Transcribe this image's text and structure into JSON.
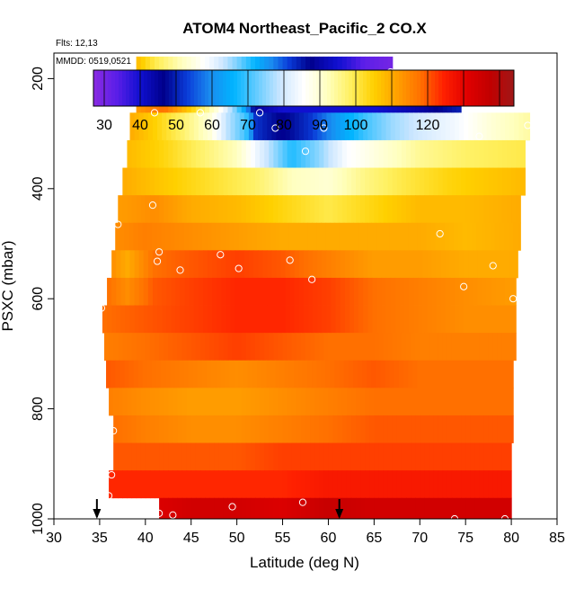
{
  "chart_data": {
    "type": "heatmap",
    "title": "ATOM4 Northeast_Pacific_2 CO.X",
    "annotations": [
      "Flts: 12,13",
      "MMDD: 0519,0521"
    ],
    "xlabel": "Latitude (deg N)",
    "ylabel": "PSXC (mbar)",
    "xlim": [
      30,
      85
    ],
    "ylim": [
      1000,
      0
    ],
    "y_inverted": true,
    "x_ticks": [
      "30",
      "35",
      "40",
      "45",
      "50",
      "55",
      "60",
      "65",
      "70",
      "75",
      "80",
      "85"
    ],
    "y_ticks": [
      "200",
      "400",
      "600",
      "800",
      "1000"
    ],
    "colorbar": {
      "range": [
        27,
        144
      ],
      "ticks": [
        "30",
        "40",
        "50",
        "60",
        "70",
        "80",
        "90",
        "100",
        "120"
      ],
      "placement": "top-inside",
      "colors": [
        "#8a2be2",
        "#5a1ee8",
        "#1010d0",
        "#00008c",
        "#0a3cd8",
        "#1a8cf0",
        "#00b4ff",
        "#66ccff",
        "#cce6ff",
        "#ffffff",
        "#ffffc0",
        "#fff060",
        "#ffd000",
        "#ffa000",
        "#ff7000",
        "#ff2000",
        "#e00000",
        "#c00000",
        "#a01818"
      ]
    },
    "arrows_at_latitude": [
      34.7,
      61.2
    ],
    "bands": [
      {
        "p_top": 160,
        "p_bot": 212,
        "x0": 39.0,
        "x1": 67.0,
        "values": [
          [
            39,
            108
          ],
          [
            41,
            100
          ],
          [
            44,
            92
          ],
          [
            47,
            84
          ],
          [
            50,
            74
          ],
          [
            53,
            62
          ],
          [
            56,
            52
          ],
          [
            59,
            44
          ],
          [
            62,
            38
          ],
          [
            64,
            33
          ],
          [
            67,
            30
          ]
        ]
      },
      {
        "p_top": 212,
        "p_bot": 262,
        "x0": 39.0,
        "x1": 74.5,
        "values": [
          [
            39,
            112
          ],
          [
            42,
            118
          ],
          [
            45,
            105
          ],
          [
            48,
            88
          ],
          [
            50,
            72
          ],
          [
            51,
            62
          ],
          [
            52,
            45
          ],
          [
            55,
            40
          ],
          [
            60,
            40
          ],
          [
            65,
            40
          ],
          [
            70,
            44
          ],
          [
            74.5,
            50
          ]
        ]
      },
      {
        "p_top": 262,
        "p_bot": 312,
        "x0": 38.3,
        "x1": 82.0,
        "values": [
          [
            38.3,
            110
          ],
          [
            41,
            105
          ],
          [
            44,
            98
          ],
          [
            47,
            90
          ],
          [
            49,
            78
          ],
          [
            51,
            70
          ],
          [
            52,
            52
          ],
          [
            55,
            46
          ],
          [
            58,
            52
          ],
          [
            61,
            62
          ],
          [
            64,
            70
          ],
          [
            67,
            76
          ],
          [
            70,
            80
          ],
          [
            74,
            84
          ],
          [
            78,
            90
          ],
          [
            82,
            94
          ]
        ]
      },
      {
        "p_top": 312,
        "p_bot": 362,
        "x0": 38.0,
        "x1": 81.5,
        "values": [
          [
            38,
            108
          ],
          [
            42,
            104
          ],
          [
            46,
            98
          ],
          [
            50,
            92
          ],
          [
            53,
            80
          ],
          [
            56,
            68
          ],
          [
            59,
            75
          ],
          [
            62,
            85
          ],
          [
            66,
            90
          ],
          [
            70,
            95
          ],
          [
            75,
            98
          ],
          [
            81.5,
            100
          ]
        ]
      },
      {
        "p_top": 362,
        "p_bot": 412,
        "x0": 37.5,
        "x1": 81.5,
        "values": [
          [
            37.5,
            110
          ],
          [
            42,
            106
          ],
          [
            47,
            102
          ],
          [
            52,
            98
          ],
          [
            56,
            92
          ],
          [
            60,
            90
          ],
          [
            64,
            96
          ],
          [
            68,
            100
          ],
          [
            73,
            104
          ],
          [
            77,
            106
          ],
          [
            81.5,
            108
          ]
        ]
      },
      {
        "p_top": 412,
        "p_bot": 462,
        "x0": 37.0,
        "x1": 81.0,
        "values": [
          [
            37,
            112
          ],
          [
            41,
            114
          ],
          [
            45,
            110
          ],
          [
            50,
            108
          ],
          [
            55,
            104
          ],
          [
            60,
            100
          ],
          [
            65,
            104
          ],
          [
            70,
            108
          ],
          [
            75,
            108
          ],
          [
            81,
            110
          ]
        ]
      },
      {
        "p_top": 462,
        "p_bot": 512,
        "x0": 36.7,
        "x1": 81.0,
        "values": [
          [
            36.7,
            114
          ],
          [
            40,
            116
          ],
          [
            45,
            114
          ],
          [
            50,
            112
          ],
          [
            55,
            110
          ],
          [
            60,
            110
          ],
          [
            65,
            110
          ],
          [
            70,
            110
          ],
          [
            75,
            108
          ],
          [
            81,
            110
          ]
        ]
      },
      {
        "p_top": 512,
        "p_bot": 562,
        "x0": 36.3,
        "x1": 80.7,
        "values": [
          [
            36.3,
            114
          ],
          [
            38,
            110
          ],
          [
            41,
            118
          ],
          [
            45,
            120
          ],
          [
            50,
            122
          ],
          [
            55,
            120
          ],
          [
            60,
            116
          ],
          [
            65,
            112
          ],
          [
            70,
            112
          ],
          [
            75,
            110
          ],
          [
            80.7,
            110
          ]
        ]
      },
      {
        "p_top": 562,
        "p_bot": 612,
        "x0": 35.8,
        "x1": 80.5,
        "values": [
          [
            35.8,
            118
          ],
          [
            38,
            114
          ],
          [
            41,
            120
          ],
          [
            45,
            122
          ],
          [
            50,
            124
          ],
          [
            55,
            124
          ],
          [
            60,
            122
          ],
          [
            65,
            118
          ],
          [
            70,
            116
          ],
          [
            75,
            114
          ],
          [
            80.5,
            112
          ]
        ]
      },
      {
        "p_top": 612,
        "p_bot": 662,
        "x0": 35.3,
        "x1": 80.5,
        "values": [
          [
            35.3,
            118
          ],
          [
            40,
            120
          ],
          [
            45,
            122
          ],
          [
            50,
            124
          ],
          [
            55,
            124
          ],
          [
            60,
            122
          ],
          [
            65,
            118
          ],
          [
            70,
            116
          ],
          [
            75,
            114
          ],
          [
            80.5,
            114
          ]
        ]
      },
      {
        "p_top": 662,
        "p_bot": 712,
        "x0": 35.5,
        "x1": 80.5,
        "values": [
          [
            35.5,
            116
          ],
          [
            40,
            118
          ],
          [
            45,
            120
          ],
          [
            50,
            122
          ],
          [
            55,
            120
          ],
          [
            60,
            118
          ],
          [
            65,
            118
          ],
          [
            70,
            116
          ],
          [
            75,
            116
          ],
          [
            80.5,
            116
          ]
        ]
      },
      {
        "p_top": 712,
        "p_bot": 762,
        "x0": 35.7,
        "x1": 80.2,
        "values": [
          [
            35.7,
            120
          ],
          [
            40,
            118
          ],
          [
            45,
            116
          ],
          [
            50,
            114
          ],
          [
            55,
            116
          ],
          [
            60,
            118
          ],
          [
            65,
            120
          ],
          [
            70,
            118
          ],
          [
            75,
            118
          ],
          [
            80.2,
            118
          ]
        ]
      },
      {
        "p_top": 762,
        "p_bot": 812,
        "x0": 36.0,
        "x1": 80.2,
        "values": [
          [
            36,
            116
          ],
          [
            40,
            114
          ],
          [
            45,
            112
          ],
          [
            50,
            112
          ],
          [
            55,
            114
          ],
          [
            60,
            116
          ],
          [
            65,
            118
          ],
          [
            70,
            118
          ],
          [
            75,
            118
          ],
          [
            80.2,
            118
          ]
        ]
      },
      {
        "p_top": 812,
        "p_bot": 862,
        "x0": 36.5,
        "x1": 80.2,
        "values": [
          [
            36.5,
            118
          ],
          [
            40,
            116
          ],
          [
            45,
            114
          ],
          [
            50,
            114
          ],
          [
            55,
            116
          ],
          [
            60,
            118
          ],
          [
            65,
            120
          ],
          [
            70,
            120
          ],
          [
            75,
            120
          ],
          [
            80.2,
            120
          ]
        ]
      },
      {
        "p_top": 862,
        "p_bot": 912,
        "x0": 36.5,
        "x1": 80.0,
        "values": [
          [
            36.5,
            120
          ],
          [
            40,
            120
          ],
          [
            45,
            120
          ],
          [
            50,
            120
          ],
          [
            55,
            122
          ],
          [
            60,
            122
          ],
          [
            65,
            122
          ],
          [
            70,
            122
          ],
          [
            75,
            122
          ],
          [
            80,
            122
          ]
        ]
      },
      {
        "p_top": 912,
        "p_bot": 962,
        "x0": 36.0,
        "x1": 80.0,
        "values": [
          [
            36,
            124
          ],
          [
            40,
            124
          ],
          [
            45,
            124
          ],
          [
            50,
            124
          ],
          [
            55,
            124
          ],
          [
            60,
            126
          ],
          [
            65,
            126
          ],
          [
            70,
            126
          ],
          [
            75,
            126
          ],
          [
            80,
            126
          ]
        ]
      },
      {
        "p_top": 962,
        "p_bot": 1005,
        "x0": 41.5,
        "x1": 80.0,
        "values": [
          [
            41.5,
            132
          ],
          [
            45,
            134
          ],
          [
            50,
            134
          ],
          [
            55,
            132
          ],
          [
            60,
            136
          ],
          [
            65,
            134
          ],
          [
            70,
            134
          ],
          [
            75,
            134
          ],
          [
            80,
            134
          ]
        ]
      }
    ],
    "points": [
      [
        39.5,
        195
      ],
      [
        66.8,
        188
      ],
      [
        63.8,
        192
      ],
      [
        69.3,
        220
      ],
      [
        41.0,
        262
      ],
      [
        46.0,
        262
      ],
      [
        52.5,
        262
      ],
      [
        54.2,
        290
      ],
      [
        59.5,
        290
      ],
      [
        76.5,
        305
      ],
      [
        81.8,
        285
      ],
      [
        57.5,
        332
      ],
      [
        40.8,
        430
      ],
      [
        37.0,
        465
      ],
      [
        72.2,
        482
      ],
      [
        41.5,
        515
      ],
      [
        48.2,
        520
      ],
      [
        41.3,
        532
      ],
      [
        43.8,
        548
      ],
      [
        50.2,
        545
      ],
      [
        55.8,
        530
      ],
      [
        58.2,
        565
      ],
      [
        78.0,
        540
      ],
      [
        74.8,
        578
      ],
      [
        80.2,
        600
      ],
      [
        35.2,
        617
      ],
      [
        36.5,
        840
      ],
      [
        36.3,
        920
      ],
      [
        36.0,
        958
      ],
      [
        41.5,
        990
      ],
      [
        43.0,
        993
      ],
      [
        49.5,
        978
      ],
      [
        57.2,
        970
      ],
      [
        73.8,
        1000
      ],
      [
        79.3,
        1000
      ]
    ]
  }
}
